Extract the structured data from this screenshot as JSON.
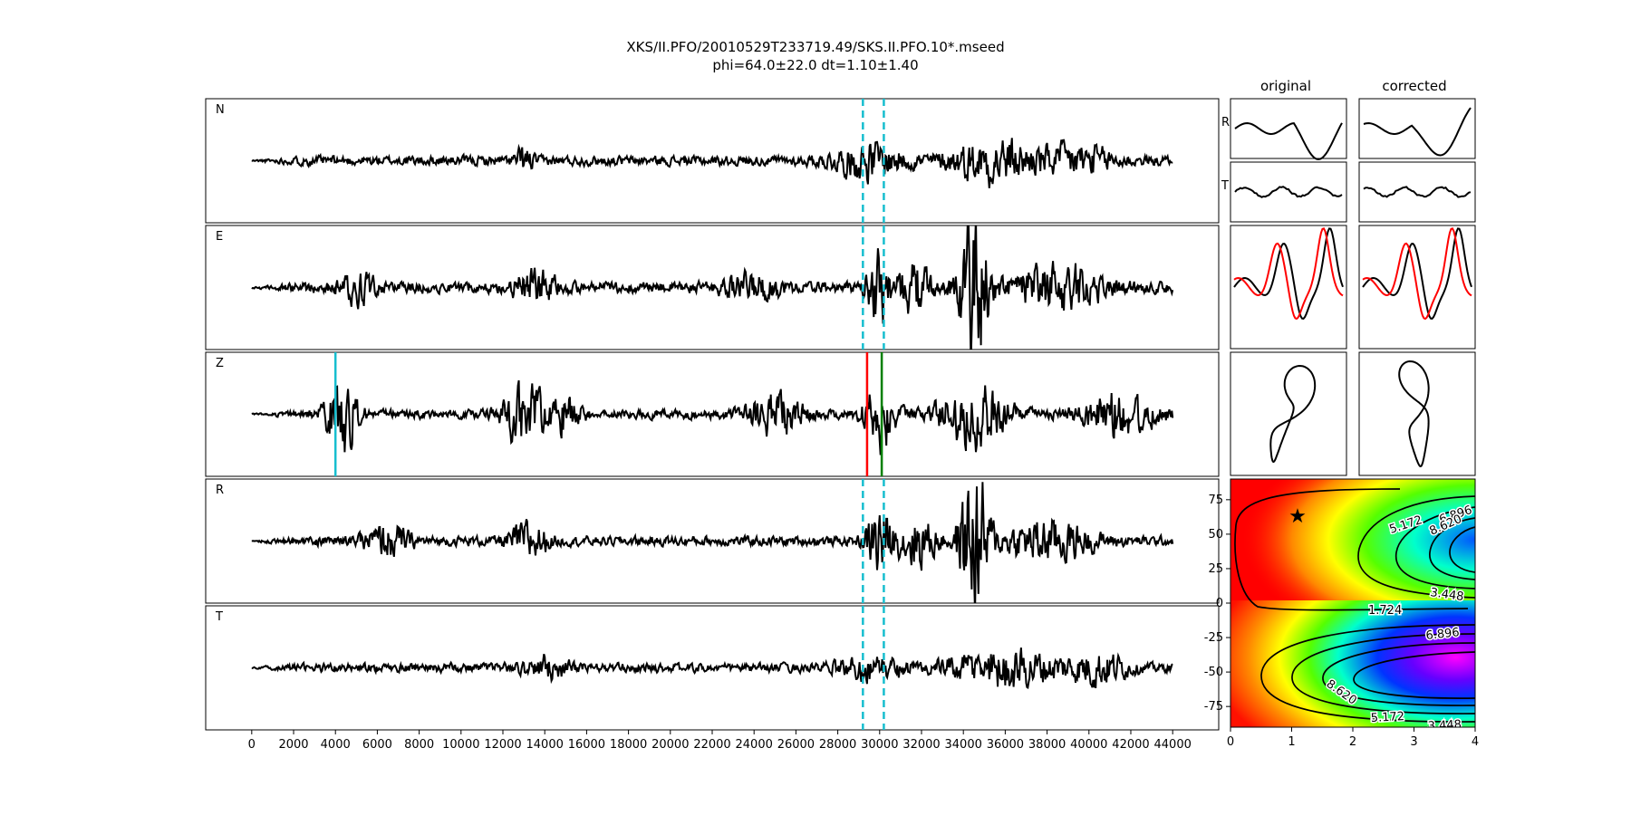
{
  "title_line1": "XKS/II.PFO/20010529T233719.49/SKS.II.PFO.10*.mseed",
  "title_line2": "phi=64.0±22.0 dt=1.10±1.40",
  "header_original": "original",
  "header_corrected": "corrected",
  "colors": {
    "trace": "#000000",
    "cyan": "#17becf",
    "red": "#ff0000",
    "green": "#008000",
    "pred": "#ff0000"
  },
  "chart_data": [
    {
      "type": "line",
      "name": "seismogram-panels",
      "traces": [
        "N",
        "E",
        "Z",
        "R",
        "T"
      ],
      "x_range": [
        0,
        44000
      ],
      "xlim": [
        -2200,
        46200
      ],
      "xticks": [
        0,
        2000,
        4000,
        6000,
        8000,
        10000,
        12000,
        14000,
        16000,
        18000,
        20000,
        22000,
        24000,
        26000,
        28000,
        30000,
        32000,
        34000,
        36000,
        38000,
        40000,
        42000,
        44000
      ],
      "window_lines_x": [
        29200,
        30200
      ],
      "z_pick_lines": [
        {
          "x": 4000,
          "color": "cyan"
        },
        {
          "x": 29400,
          "color": "red"
        },
        {
          "x": 30100,
          "color": "green"
        }
      ],
      "series": [
        {
          "name": "N",
          "seed": 11,
          "noise": 0.13,
          "packets": [
            [
              13000,
              300,
              0.3
            ],
            [
              29500,
              1200,
              0.45
            ],
            [
              35500,
              1500,
              0.55
            ],
            [
              39500,
              1200,
              0.4
            ]
          ]
        },
        {
          "name": "E",
          "seed": 22,
          "noise": 0.15,
          "packets": [
            [
              5000,
              600,
              0.35
            ],
            [
              13500,
              700,
              0.4
            ],
            [
              24000,
              900,
              0.3
            ],
            [
              30000,
              400,
              0.95
            ],
            [
              31700,
              500,
              0.7
            ],
            [
              34500,
              500,
              2.0
            ],
            [
              38500,
              1500,
              0.6
            ]
          ]
        },
        {
          "name": "Z",
          "seed": 33,
          "noise": 0.12,
          "packets": [
            [
              4300,
              500,
              1.1
            ],
            [
              13000,
              700,
              0.8
            ],
            [
              15000,
              500,
              0.5
            ],
            [
              25000,
              900,
              0.5
            ],
            [
              30000,
              500,
              0.9
            ],
            [
              34500,
              1200,
              0.8
            ],
            [
              41500,
              1200,
              0.6
            ]
          ]
        },
        {
          "name": "R",
          "seed": 44,
          "noise": 0.13,
          "packets": [
            [
              6500,
              700,
              0.4
            ],
            [
              13200,
              600,
              0.5
            ],
            [
              30000,
              400,
              1.0
            ],
            [
              31800,
              600,
              0.7
            ],
            [
              34500,
              500,
              2.0
            ],
            [
              38000,
              1500,
              0.55
            ]
          ]
        },
        {
          "name": "T",
          "seed": 55,
          "noise": 0.12,
          "packets": [
            [
              14000,
              800,
              0.25
            ],
            [
              29500,
              1000,
              0.3
            ],
            [
              36000,
              2000,
              0.5
            ],
            [
              40500,
              900,
              0.4
            ]
          ]
        }
      ]
    },
    {
      "type": "line",
      "name": "rt-panels",
      "rows": [
        "R",
        "T"
      ],
      "columns": [
        "original",
        "corrected"
      ]
    },
    {
      "type": "line",
      "name": "waveform-overlay",
      "series": [
        {
          "color": "trace"
        },
        {
          "color": "pred"
        }
      ]
    },
    {
      "type": "line",
      "name": "particle-motion"
    },
    {
      "type": "heatmap",
      "name": "error-surface",
      "xlim": [
        0,
        4
      ],
      "ylim": [
        -90,
        90
      ],
      "xticks": [
        0,
        1,
        2,
        3,
        4
      ],
      "yticks": [
        -75,
        -50,
        -25,
        0,
        25,
        50,
        75
      ],
      "contour_labels": [
        "1.724",
        "3.448",
        "5.172",
        "6.896",
        "8.620"
      ],
      "best_fit": {
        "dt": 1.1,
        "phi": 64.0
      }
    }
  ]
}
